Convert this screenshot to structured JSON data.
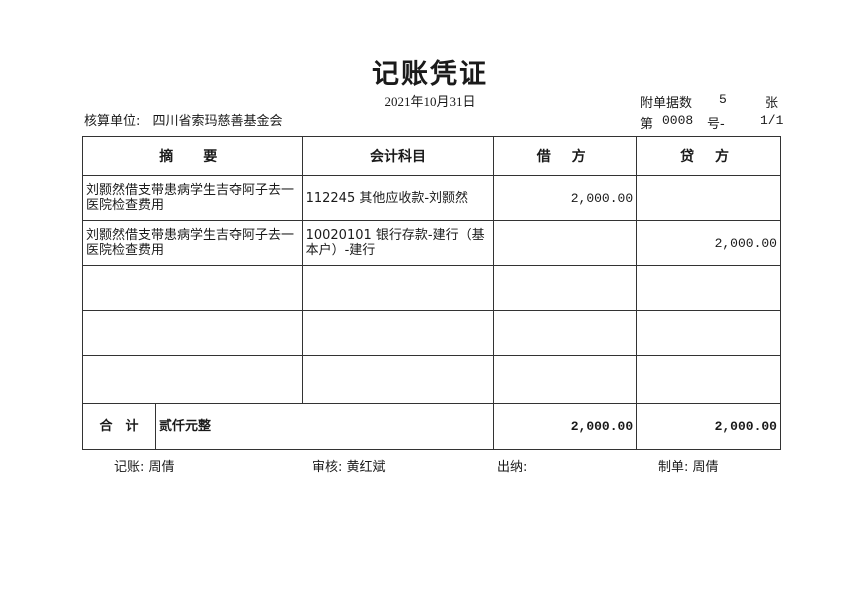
{
  "title": "记账凭证",
  "date": "2021年10月31日",
  "unit_label": "核算单位:",
  "unit_name": "四川省索玛慈善基金会",
  "attachments": {
    "label": "附单据数",
    "count": "5",
    "unit": "张"
  },
  "voucher_no": {
    "prefix": "第",
    "number": "0008",
    "suffix": "号-",
    "page": "1/1"
  },
  "table": {
    "headers": [
      "摘　要",
      "会计科目",
      "借 方",
      "贷 方"
    ],
    "rows": [
      {
        "summary": "刘颢然借支带患病学生吉夺阿子去一医院检查费用",
        "account": "112245 其他应收款-刘颢然",
        "debit": "2,000.00",
        "credit": ""
      },
      {
        "summary": "刘颢然借支带患病学生吉夺阿子去一医院检查费用",
        "account": "10020101 银行存款-建行（基本户）-建行",
        "debit": "",
        "credit": "2,000.00"
      },
      {
        "summary": "",
        "account": "",
        "debit": "",
        "credit": ""
      },
      {
        "summary": "",
        "account": "",
        "debit": "",
        "credit": ""
      },
      {
        "summary": "",
        "account": "",
        "debit": "",
        "credit": ""
      }
    ],
    "total": {
      "label": "合　计",
      "amount_words": "贰仟元整",
      "debit": "2,000.00",
      "credit": "2,000.00"
    }
  },
  "signatures": {
    "bookkeeper": {
      "label": "记账:",
      "name": "周倩"
    },
    "reviewer": {
      "label": "审核:",
      "name": "黄红斌"
    },
    "cashier": {
      "label": "出纳:",
      "name": ""
    },
    "preparer": {
      "label": "制单:",
      "name": "周倩"
    }
  }
}
